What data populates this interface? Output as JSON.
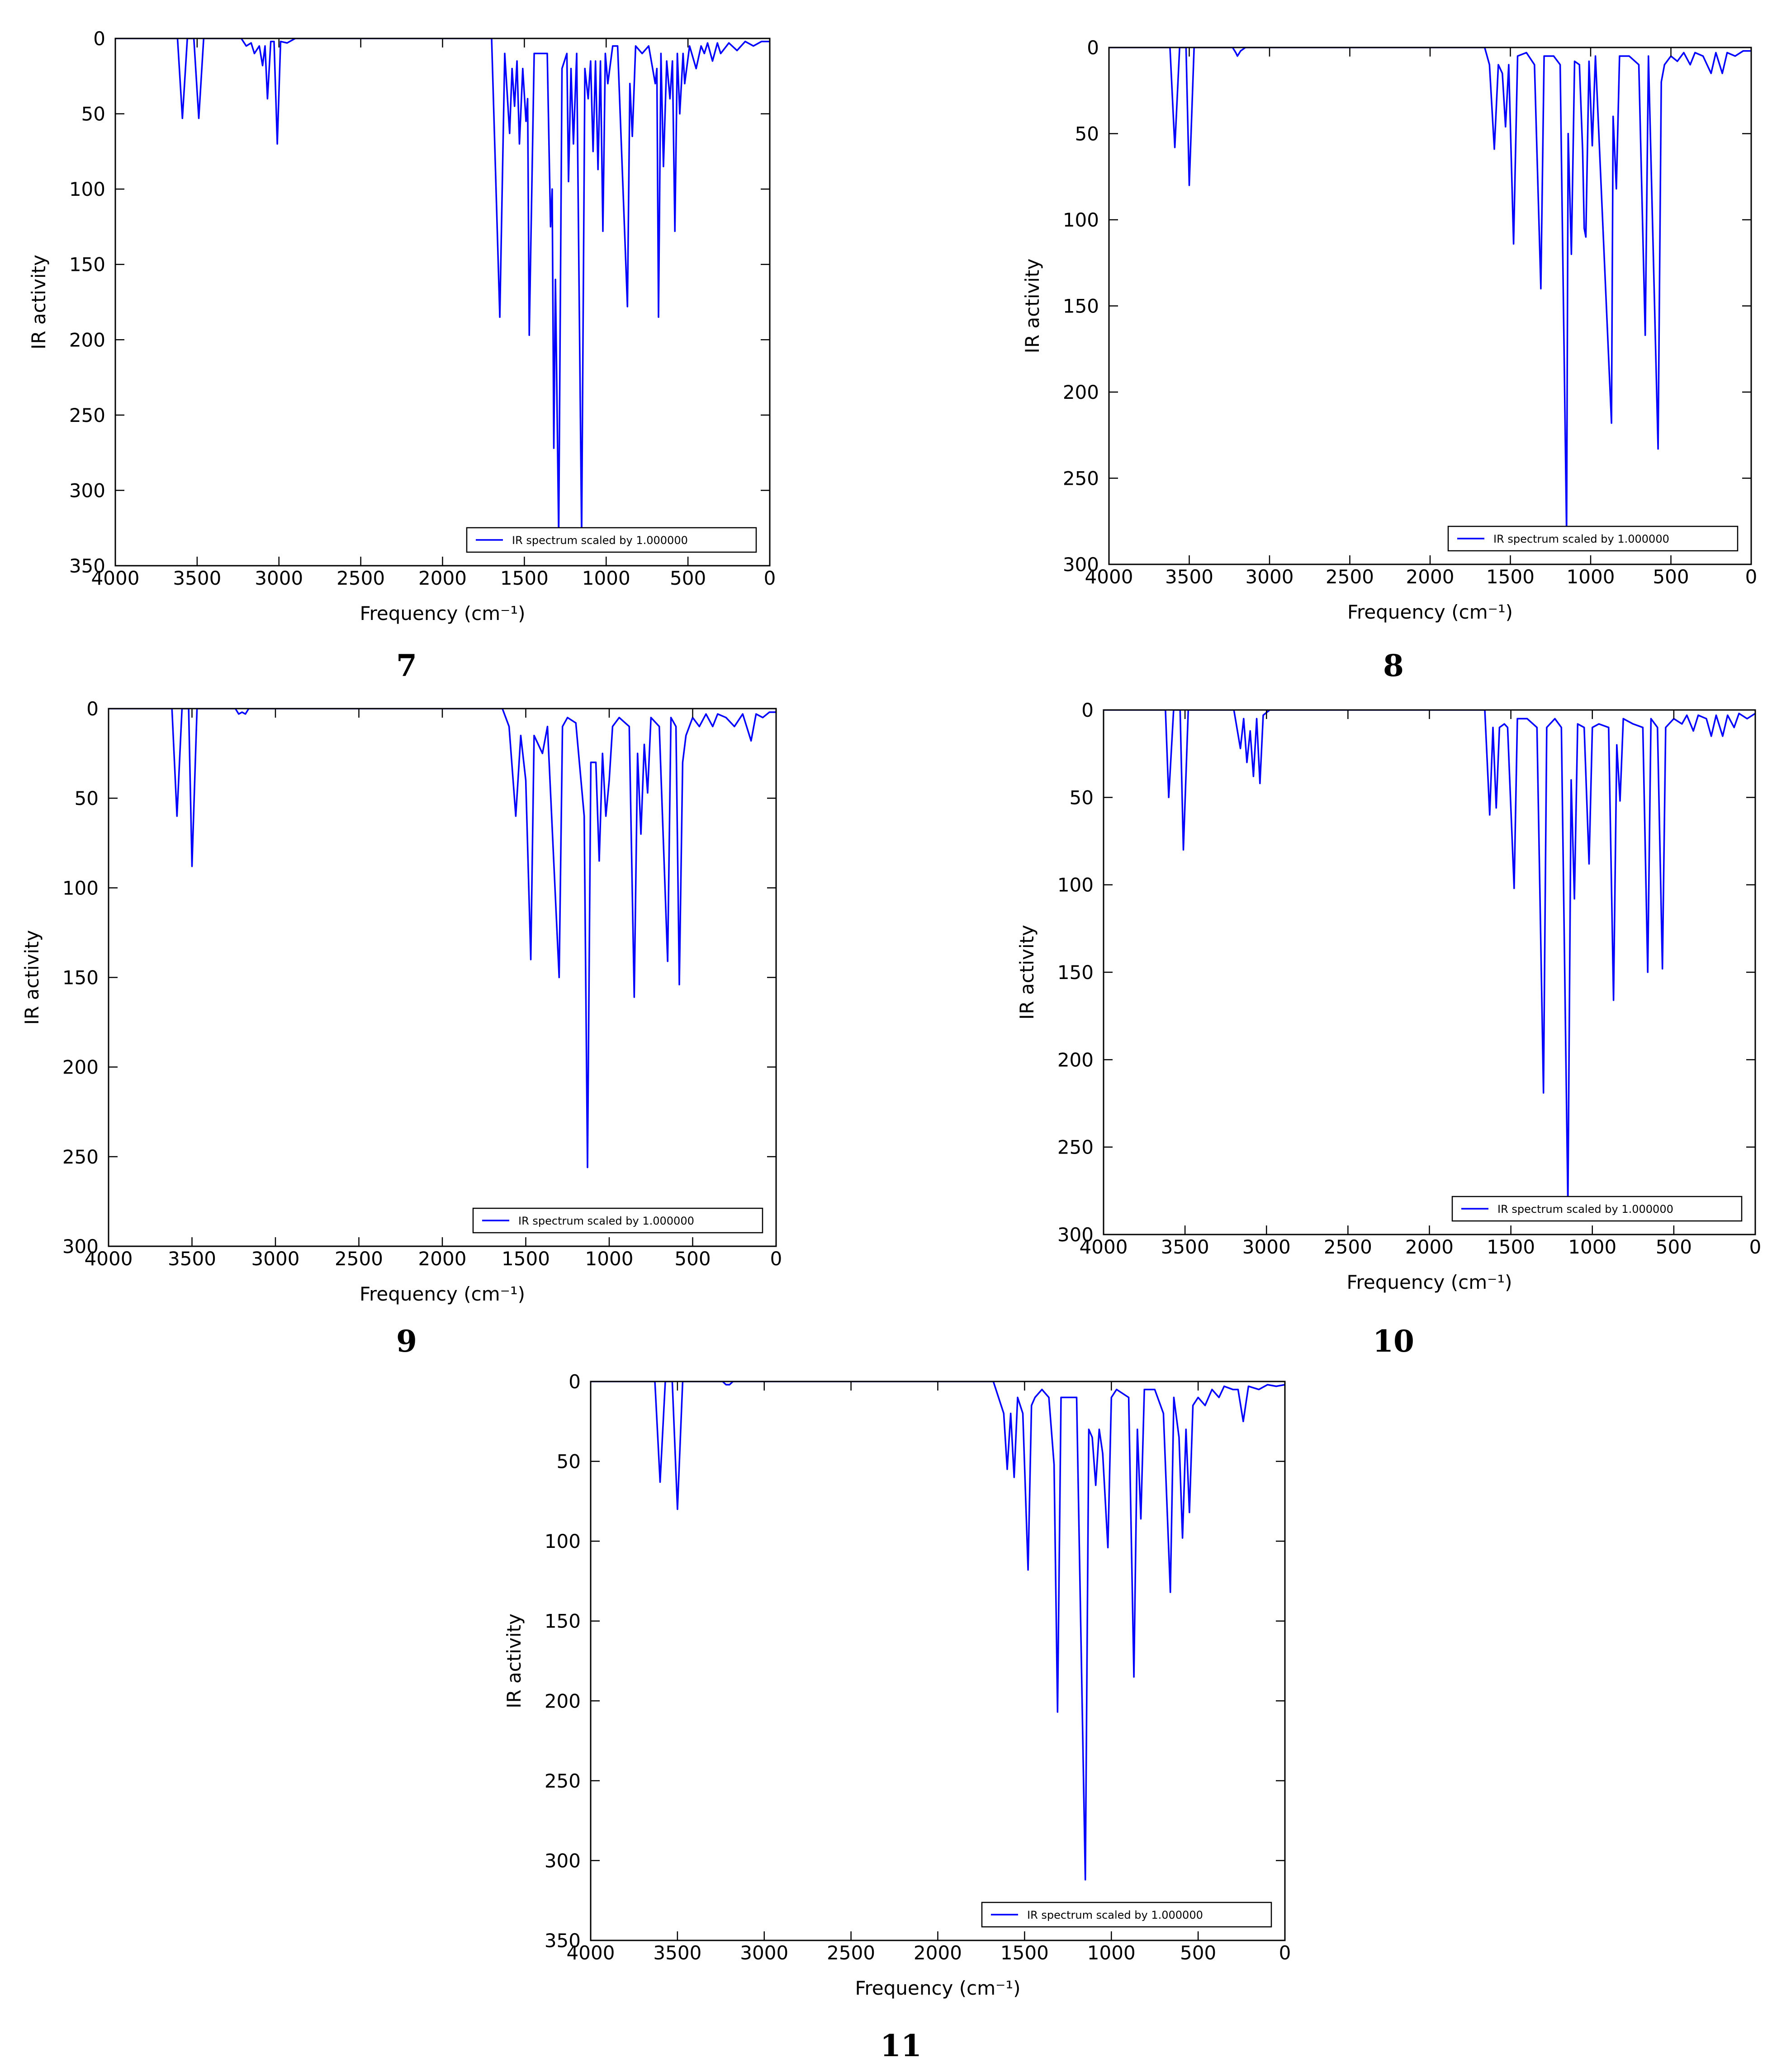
{
  "chart_data": [
    {
      "type": "line",
      "label": "7",
      "xlabel": "Frequency (cm⁻¹)",
      "ylabel": "IR activity",
      "xlim": [
        4000,
        0
      ],
      "ylim": [
        350,
        0
      ],
      "xticks": [
        4000,
        3500,
        3000,
        2500,
        2000,
        1500,
        1000,
        500,
        0
      ],
      "yticks": [
        0,
        50,
        100,
        150,
        200,
        250,
        300,
        350
      ],
      "grid": false,
      "legend": "lower right",
      "x": [
        4000,
        3620,
        3590,
        3560,
        3520,
        3490,
        3460,
        3230,
        3200,
        3170,
        3150,
        3120,
        3100,
        3085,
        3070,
        3050,
        3030,
        3010,
        2990,
        2950,
        2900,
        1700,
        1650,
        1620,
        1590,
        1575,
        1560,
        1545,
        1530,
        1510,
        1490,
        1480,
        1470,
        1440,
        1360,
        1340,
        1330,
        1320,
        1310,
        1290,
        1270,
        1240,
        1230,
        1215,
        1200,
        1180,
        1150,
        1130,
        1110,
        1095,
        1080,
        1065,
        1050,
        1035,
        1020,
        1005,
        990,
        960,
        930,
        870,
        855,
        840,
        820,
        780,
        740,
        700,
        690,
        680,
        665,
        650,
        630,
        610,
        595,
        580,
        565,
        550,
        530,
        520,
        490,
        450,
        420,
        400,
        380,
        350,
        320,
        300,
        250,
        200,
        150,
        100,
        50,
        0
      ],
      "series": [
        {
          "name": "IR spectrum scaled by 1.000000",
          "color": "#0000ff",
          "values": [
            0,
            0,
            53,
            0,
            0,
            53,
            0,
            0,
            5,
            3,
            10,
            5,
            18,
            5,
            40,
            2,
            2,
            70,
            2,
            3,
            0,
            0,
            185,
            10,
            63,
            20,
            45,
            15,
            70,
            20,
            55,
            40,
            197,
            10,
            10,
            125,
            100,
            272,
            160,
            330,
            20,
            10,
            95,
            20,
            70,
            10,
            330,
            20,
            40,
            15,
            75,
            15,
            87,
            15,
            128,
            10,
            30,
            5,
            5,
            178,
            30,
            65,
            5,
            10,
            5,
            30,
            20,
            185,
            10,
            85,
            15,
            40,
            15,
            128,
            10,
            50,
            10,
            30,
            5,
            20,
            5,
            10,
            3,
            15,
            3,
            10,
            3,
            8,
            2,
            5,
            2,
            2
          ]
        }
      ]
    },
    {
      "type": "line",
      "label": "8",
      "xlabel": "Frequency (cm⁻¹)",
      "ylabel": "IR activity",
      "xlim": [
        4000,
        0
      ],
      "ylim": [
        300,
        0
      ],
      "xticks": [
        4000,
        3500,
        3000,
        2500,
        2000,
        1500,
        1000,
        500,
        0
      ],
      "yticks": [
        0,
        50,
        100,
        150,
        200,
        250,
        300
      ],
      "grid": false,
      "legend": "lower right",
      "x": [
        4000,
        3620,
        3590,
        3560,
        3520,
        3500,
        3470,
        3230,
        3210,
        3200,
        3180,
        3150,
        1660,
        1630,
        1600,
        1575,
        1550,
        1530,
        1510,
        1480,
        1455,
        1400,
        1350,
        1310,
        1290,
        1230,
        1190,
        1150,
        1140,
        1120,
        1100,
        1070,
        1050,
        1040,
        1030,
        1010,
        990,
        970,
        870,
        860,
        840,
        820,
        760,
        700,
        660,
        640,
        580,
        560,
        540,
        500,
        460,
        420,
        380,
        350,
        300,
        250,
        220,
        180,
        150,
        100,
        50,
        0
      ],
      "series": [
        {
          "name": "IR spectrum scaled by 1.000000",
          "color": "#0000ff",
          "values": [
            0,
            0,
            58,
            0,
            0,
            80,
            0,
            0,
            3,
            5,
            2,
            0,
            0,
            10,
            59,
            10,
            15,
            46,
            10,
            114,
            5,
            3,
            10,
            140,
            5,
            5,
            10,
            282,
            50,
            120,
            8,
            10,
            60,
            105,
            110,
            8,
            57,
            5,
            218,
            40,
            82,
            5,
            5,
            10,
            167,
            5,
            233,
            20,
            10,
            5,
            8,
            3,
            10,
            3,
            5,
            15,
            3,
            15,
            3,
            5,
            2,
            2
          ]
        }
      ]
    },
    {
      "type": "line",
      "label": "9",
      "xlabel": "Frequency (cm⁻¹)",
      "ylabel": "IR activity",
      "xlim": [
        4000,
        0
      ],
      "ylim": [
        300,
        0
      ],
      "xticks": [
        4000,
        3500,
        3000,
        2500,
        2000,
        1500,
        1000,
        500,
        0
      ],
      "yticks": [
        0,
        50,
        100,
        150,
        200,
        250,
        300
      ],
      "grid": false,
      "legend": "lower right",
      "x": [
        4000,
        3620,
        3590,
        3560,
        3520,
        3500,
        3470,
        3240,
        3220,
        3200,
        3180,
        3160,
        1640,
        1600,
        1560,
        1530,
        1500,
        1470,
        1450,
        1400,
        1370,
        1300,
        1280,
        1250,
        1200,
        1150,
        1130,
        1110,
        1080,
        1060,
        1040,
        1020,
        1000,
        980,
        940,
        880,
        850,
        830,
        810,
        790,
        770,
        750,
        700,
        650,
        630,
        600,
        580,
        560,
        540,
        500,
        460,
        420,
        380,
        350,
        300,
        250,
        200,
        150,
        120,
        80,
        40,
        0
      ],
      "series": [
        {
          "name": "IR spectrum scaled by 1.000000",
          "color": "#0000ff",
          "values": [
            0,
            0,
            60,
            0,
            0,
            88,
            0,
            0,
            3,
            2,
            3,
            0,
            0,
            10,
            60,
            15,
            40,
            140,
            15,
            25,
            10,
            150,
            10,
            5,
            8,
            60,
            256,
            30,
            30,
            85,
            25,
            60,
            40,
            10,
            5,
            10,
            161,
            25,
            70,
            20,
            47,
            5,
            10,
            141,
            5,
            10,
            154,
            30,
            15,
            5,
            10,
            3,
            10,
            3,
            5,
            10,
            3,
            18,
            3,
            5,
            2,
            2
          ]
        }
      ]
    },
    {
      "type": "line",
      "label": "10",
      "xlabel": "Frequency (cm⁻¹)",
      "ylabel": "IR activity",
      "xlim": [
        4000,
        0
      ],
      "ylim": [
        300,
        0
      ],
      "xticks": [
        4000,
        3500,
        3000,
        2500,
        2000,
        1500,
        1000,
        500,
        0
      ],
      "yticks": [
        0,
        50,
        100,
        150,
        200,
        250,
        300
      ],
      "grid": false,
      "legend": "lower right",
      "x": [
        4000,
        3620,
        3600,
        3570,
        3530,
        3510,
        3480,
        3200,
        3160,
        3140,
        3120,
        3100,
        3080,
        3060,
        3040,
        3020,
        2980,
        1660,
        1630,
        1610,
        1590,
        1570,
        1540,
        1520,
        1480,
        1460,
        1400,
        1340,
        1300,
        1280,
        1230,
        1190,
        1150,
        1130,
        1110,
        1090,
        1050,
        1020,
        1000,
        960,
        900,
        870,
        850,
        830,
        810,
        750,
        690,
        660,
        640,
        600,
        570,
        550,
        500,
        450,
        420,
        380,
        350,
        300,
        270,
        240,
        200,
        170,
        130,
        100,
        50,
        0
      ],
      "series": [
        {
          "name": "IR spectrum scaled by 1.000000",
          "color": "#0000ff",
          "values": [
            0,
            0,
            50,
            0,
            0,
            80,
            0,
            0,
            22,
            5,
            30,
            12,
            38,
            5,
            42,
            3,
            0,
            0,
            60,
            10,
            56,
            10,
            8,
            10,
            102,
            5,
            5,
            10,
            219,
            10,
            5,
            10,
            283,
            40,
            108,
            8,
            10,
            88,
            10,
            8,
            10,
            166,
            20,
            52,
            5,
            8,
            10,
            150,
            5,
            10,
            148,
            10,
            5,
            8,
            3,
            12,
            3,
            5,
            15,
            3,
            15,
            3,
            10,
            2,
            5,
            2
          ]
        }
      ]
    },
    {
      "type": "line",
      "label": "11",
      "xlabel": "Frequency (cm⁻¹)",
      "ylabel": "IR activity",
      "xlim": [
        4000,
        0
      ],
      "ylim": [
        350,
        0
      ],
      "xticks": [
        4000,
        3500,
        3000,
        2500,
        2000,
        1500,
        1000,
        500,
        0
      ],
      "yticks": [
        0,
        50,
        100,
        150,
        200,
        250,
        300,
        350
      ],
      "grid": false,
      "legend": "lower right",
      "x": [
        4000,
        3630,
        3600,
        3570,
        3530,
        3500,
        3470,
        3240,
        3220,
        3200,
        3180,
        1680,
        1620,
        1600,
        1580,
        1560,
        1540,
        1510,
        1480,
        1460,
        1440,
        1400,
        1360,
        1330,
        1310,
        1290,
        1260,
        1230,
        1200,
        1150,
        1130,
        1110,
        1090,
        1070,
        1050,
        1020,
        1000,
        970,
        900,
        870,
        850,
        830,
        810,
        750,
        700,
        660,
        640,
        610,
        590,
        570,
        550,
        530,
        500,
        460,
        420,
        380,
        350,
        300,
        270,
        240,
        210,
        150,
        100,
        50,
        0
      ],
      "series": [
        {
          "name": "IR spectrum scaled by 1.000000",
          "color": "#0000ff",
          "values": [
            0,
            0,
            63,
            0,
            0,
            80,
            0,
            0,
            2,
            2,
            0,
            0,
            20,
            55,
            20,
            60,
            10,
            20,
            118,
            15,
            10,
            5,
            10,
            52,
            207,
            10,
            10,
            10,
            10,
            312,
            30,
            35,
            65,
            30,
            45,
            104,
            10,
            5,
            10,
            185,
            30,
            86,
            5,
            5,
            20,
            132,
            10,
            35,
            98,
            30,
            82,
            15,
            10,
            15,
            5,
            10,
            3,
            5,
            5,
            25,
            3,
            5,
            2,
            3,
            2
          ]
        }
      ]
    }
  ]
}
